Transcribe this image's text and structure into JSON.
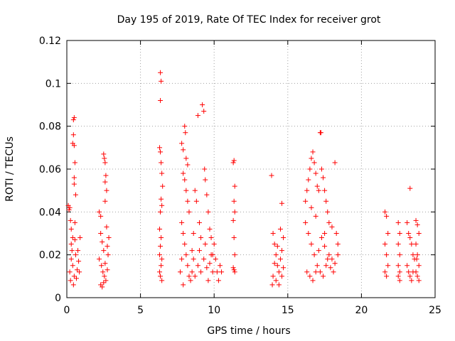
{
  "chart_data": {
    "type": "scatter",
    "title": "Day 195 of 2019, Rate Of TEC Index for receiver grot",
    "xlabel": "GPS time / hours",
    "ylabel": "ROTI / TECUs",
    "xlim": [
      0,
      25
    ],
    "ylim": [
      0,
      0.12
    ],
    "xticks": [
      0,
      5,
      10,
      15,
      20,
      25
    ],
    "yticks": [
      0,
      0.02,
      0.04,
      0.06,
      0.08,
      0.1,
      0.12
    ],
    "xtick_labels": [
      "0",
      "5",
      "10",
      "15",
      "20",
      "25"
    ],
    "ytick_labels": [
      "0",
      "0.02",
      "0.04",
      "0.06",
      "0.08",
      "0.1",
      "0.12"
    ],
    "grid": true,
    "marker": "+",
    "color": "#ff0000",
    "series": [
      {
        "points": [
          [
            0.1,
            0.043
          ],
          [
            0.15,
            0.041
          ],
          [
            0.2,
            0.042
          ],
          [
            0.25,
            0.036
          ],
          [
            0.3,
            0.032
          ],
          [
            0.4,
            0.028
          ],
          [
            0.45,
            0.083
          ],
          [
            0.5,
            0.084
          ],
          [
            0.45,
            0.076
          ],
          [
            0.4,
            0.072
          ],
          [
            0.5,
            0.071
          ],
          [
            0.55,
            0.063
          ],
          [
            0.5,
            0.056
          ],
          [
            0.5,
            0.053
          ],
          [
            0.6,
            0.048
          ],
          [
            0.55,
            0.035
          ],
          [
            0.2,
            0.012
          ],
          [
            0.3,
            0.018
          ],
          [
            0.35,
            0.022
          ],
          [
            0.4,
            0.015
          ],
          [
            0.5,
            0.01
          ],
          [
            0.6,
            0.02
          ],
          [
            0.7,
            0.013
          ],
          [
            0.8,
            0.017
          ],
          [
            0.9,
            0.028
          ],
          [
            0.85,
            0.012
          ],
          [
            0.25,
            0.008
          ],
          [
            0.45,
            0.006
          ],
          [
            0.65,
            0.009
          ],
          [
            0.3,
            0.025
          ],
          [
            0.55,
            0.027
          ],
          [
            0.75,
            0.022
          ],
          [
            2.2,
            0.04
          ],
          [
            2.3,
            0.038
          ],
          [
            2.5,
            0.067
          ],
          [
            2.55,
            0.065
          ],
          [
            2.6,
            0.063
          ],
          [
            2.65,
            0.057
          ],
          [
            2.6,
            0.054
          ],
          [
            2.7,
            0.05
          ],
          [
            2.6,
            0.045
          ],
          [
            2.3,
            0.03
          ],
          [
            2.4,
            0.026
          ],
          [
            2.5,
            0.022
          ],
          [
            2.2,
            0.018
          ],
          [
            2.35,
            0.015
          ],
          [
            2.45,
            0.012
          ],
          [
            2.55,
            0.01
          ],
          [
            2.65,
            0.008
          ],
          [
            2.75,
            0.013
          ],
          [
            2.8,
            0.02
          ],
          [
            2.85,
            0.028
          ],
          [
            2.7,
            0.033
          ],
          [
            2.3,
            0.006
          ],
          [
            2.4,
            0.005
          ],
          [
            2.5,
            0.007
          ],
          [
            2.6,
            0.016
          ],
          [
            2.75,
            0.024
          ],
          [
            6.35,
            0.105
          ],
          [
            6.4,
            0.101
          ],
          [
            6.35,
            0.092
          ],
          [
            6.3,
            0.07
          ],
          [
            6.35,
            0.068
          ],
          [
            6.4,
            0.063
          ],
          [
            6.45,
            0.058
          ],
          [
            6.5,
            0.052
          ],
          [
            6.4,
            0.046
          ],
          [
            6.45,
            0.043
          ],
          [
            6.35,
            0.04
          ],
          [
            6.3,
            0.032
          ],
          [
            6.4,
            0.028
          ],
          [
            6.35,
            0.024
          ],
          [
            6.3,
            0.02
          ],
          [
            6.4,
            0.015
          ],
          [
            6.35,
            0.01
          ],
          [
            6.45,
            0.008
          ],
          [
            6.3,
            0.012
          ],
          [
            6.45,
            0.018
          ],
          [
            7.8,
            0.072
          ],
          [
            7.9,
            0.069
          ],
          [
            8.0,
            0.08
          ],
          [
            8.05,
            0.077
          ],
          [
            8.1,
            0.065
          ],
          [
            8.2,
            0.062
          ],
          [
            7.9,
            0.058
          ],
          [
            8.0,
            0.055
          ],
          [
            8.1,
            0.05
          ],
          [
            8.2,
            0.045
          ],
          [
            8.3,
            0.04
          ],
          [
            7.8,
            0.035
          ],
          [
            7.9,
            0.03
          ],
          [
            8.0,
            0.025
          ],
          [
            8.1,
            0.02
          ],
          [
            8.2,
            0.015
          ],
          [
            8.3,
            0.01
          ],
          [
            8.4,
            0.008
          ],
          [
            7.7,
            0.012
          ],
          [
            7.8,
            0.018
          ],
          [
            7.9,
            0.006
          ],
          [
            8.5,
            0.022
          ],
          [
            8.6,
            0.018
          ],
          [
            8.7,
            0.05
          ],
          [
            8.8,
            0.045
          ],
          [
            8.9,
            0.085
          ],
          [
            9.0,
            0.035
          ],
          [
            9.1,
            0.028
          ],
          [
            9.2,
            0.09
          ],
          [
            9.3,
            0.087
          ],
          [
            9.35,
            0.06
          ],
          [
            9.4,
            0.055
          ],
          [
            9.5,
            0.048
          ],
          [
            9.6,
            0.04
          ],
          [
            9.7,
            0.032
          ],
          [
            9.8,
            0.028
          ],
          [
            9.9,
            0.02
          ],
          [
            8.5,
            0.012
          ],
          [
            8.7,
            0.01
          ],
          [
            8.9,
            0.015
          ],
          [
            9.1,
            0.012
          ],
          [
            9.3,
            0.018
          ],
          [
            9.5,
            0.014
          ],
          [
            9.7,
            0.016
          ],
          [
            9.9,
            0.012
          ],
          [
            10.0,
            0.025
          ],
          [
            10.1,
            0.018
          ],
          [
            10.2,
            0.012
          ],
          [
            10.3,
            0.008
          ],
          [
            10.4,
            0.015
          ],
          [
            10.5,
            0.012
          ],
          [
            8.6,
            0.03
          ],
          [
            9.0,
            0.022
          ],
          [
            9.4,
            0.025
          ],
          [
            9.8,
            0.02
          ],
          [
            9.6,
            0.008
          ],
          [
            11.3,
            0.063
          ],
          [
            11.35,
            0.064
          ],
          [
            11.4,
            0.052
          ],
          [
            11.35,
            0.045
          ],
          [
            11.4,
            0.04
          ],
          [
            11.3,
            0.036
          ],
          [
            11.35,
            0.028
          ],
          [
            11.4,
            0.02
          ],
          [
            11.3,
            0.014
          ],
          [
            11.35,
            0.013
          ],
          [
            11.4,
            0.012
          ],
          [
            13.9,
            0.057
          ],
          [
            14.6,
            0.044
          ],
          [
            14.0,
            0.03
          ],
          [
            14.1,
            0.025
          ],
          [
            14.2,
            0.02
          ],
          [
            14.3,
            0.015
          ],
          [
            14.4,
            0.012
          ],
          [
            14.5,
            0.018
          ],
          [
            14.6,
            0.022
          ],
          [
            14.7,
            0.028
          ],
          [
            14.0,
            0.01
          ],
          [
            14.2,
            0.008
          ],
          [
            14.4,
            0.006
          ],
          [
            14.6,
            0.01
          ],
          [
            14.1,
            0.016
          ],
          [
            14.3,
            0.024
          ],
          [
            14.5,
            0.032
          ],
          [
            13.95,
            0.006
          ],
          [
            14.7,
            0.014
          ],
          [
            16.2,
            0.045
          ],
          [
            16.3,
            0.05
          ],
          [
            16.4,
            0.055
          ],
          [
            16.5,
            0.06
          ],
          [
            16.6,
            0.065
          ],
          [
            16.7,
            0.068
          ],
          [
            16.8,
            0.063
          ],
          [
            16.9,
            0.058
          ],
          [
            17.0,
            0.052
          ],
          [
            17.1,
            0.05
          ],
          [
            17.2,
            0.077
          ],
          [
            17.25,
            0.077
          ],
          [
            17.3,
            0.06
          ],
          [
            17.4,
            0.056
          ],
          [
            17.5,
            0.05
          ],
          [
            17.6,
            0.045
          ],
          [
            17.7,
            0.04
          ],
          [
            17.8,
            0.035
          ],
          [
            18.0,
            0.033
          ],
          [
            18.2,
            0.063
          ],
          [
            18.3,
            0.03
          ],
          [
            18.4,
            0.025
          ],
          [
            16.2,
            0.035
          ],
          [
            16.4,
            0.03
          ],
          [
            16.6,
            0.025
          ],
          [
            16.8,
            0.02
          ],
          [
            17.0,
            0.015
          ],
          [
            17.2,
            0.012
          ],
          [
            17.4,
            0.01
          ],
          [
            17.6,
            0.015
          ],
          [
            17.8,
            0.02
          ],
          [
            18.0,
            0.018
          ],
          [
            18.2,
            0.016
          ],
          [
            18.4,
            0.02
          ],
          [
            16.3,
            0.012
          ],
          [
            16.5,
            0.01
          ],
          [
            16.7,
            0.008
          ],
          [
            16.9,
            0.012
          ],
          [
            17.1,
            0.022
          ],
          [
            17.3,
            0.028
          ],
          [
            17.5,
            0.024
          ],
          [
            17.7,
            0.018
          ],
          [
            17.9,
            0.014
          ],
          [
            18.1,
            0.012
          ],
          [
            16.6,
            0.042
          ],
          [
            16.9,
            0.038
          ],
          [
            17.5,
            0.03
          ],
          [
            21.6,
            0.04
          ],
          [
            21.7,
            0.038
          ],
          [
            21.8,
            0.03
          ],
          [
            21.6,
            0.025
          ],
          [
            21.7,
            0.02
          ],
          [
            21.8,
            0.015
          ],
          [
            21.6,
            0.012
          ],
          [
            21.7,
            0.01
          ],
          [
            22.5,
            0.035
          ],
          [
            22.6,
            0.03
          ],
          [
            22.5,
            0.025
          ],
          [
            22.6,
            0.02
          ],
          [
            22.5,
            0.015
          ],
          [
            22.6,
            0.012
          ],
          [
            22.5,
            0.01
          ],
          [
            22.6,
            0.008
          ],
          [
            23.3,
            0.051
          ],
          [
            23.1,
            0.035
          ],
          [
            23.2,
            0.03
          ],
          [
            23.3,
            0.028
          ],
          [
            23.4,
            0.025
          ],
          [
            23.5,
            0.02
          ],
          [
            23.1,
            0.015
          ],
          [
            23.2,
            0.012
          ],
          [
            23.3,
            0.01
          ],
          [
            23.4,
            0.008
          ],
          [
            23.5,
            0.012
          ],
          [
            23.6,
            0.018
          ],
          [
            23.7,
            0.036
          ],
          [
            23.8,
            0.034
          ],
          [
            23.9,
            0.03
          ],
          [
            23.7,
            0.025
          ],
          [
            23.8,
            0.02
          ],
          [
            23.9,
            0.015
          ],
          [
            23.7,
            0.012
          ],
          [
            23.8,
            0.01
          ],
          [
            23.9,
            0.008
          ],
          [
            23.75,
            0.018
          ]
        ]
      }
    ]
  }
}
